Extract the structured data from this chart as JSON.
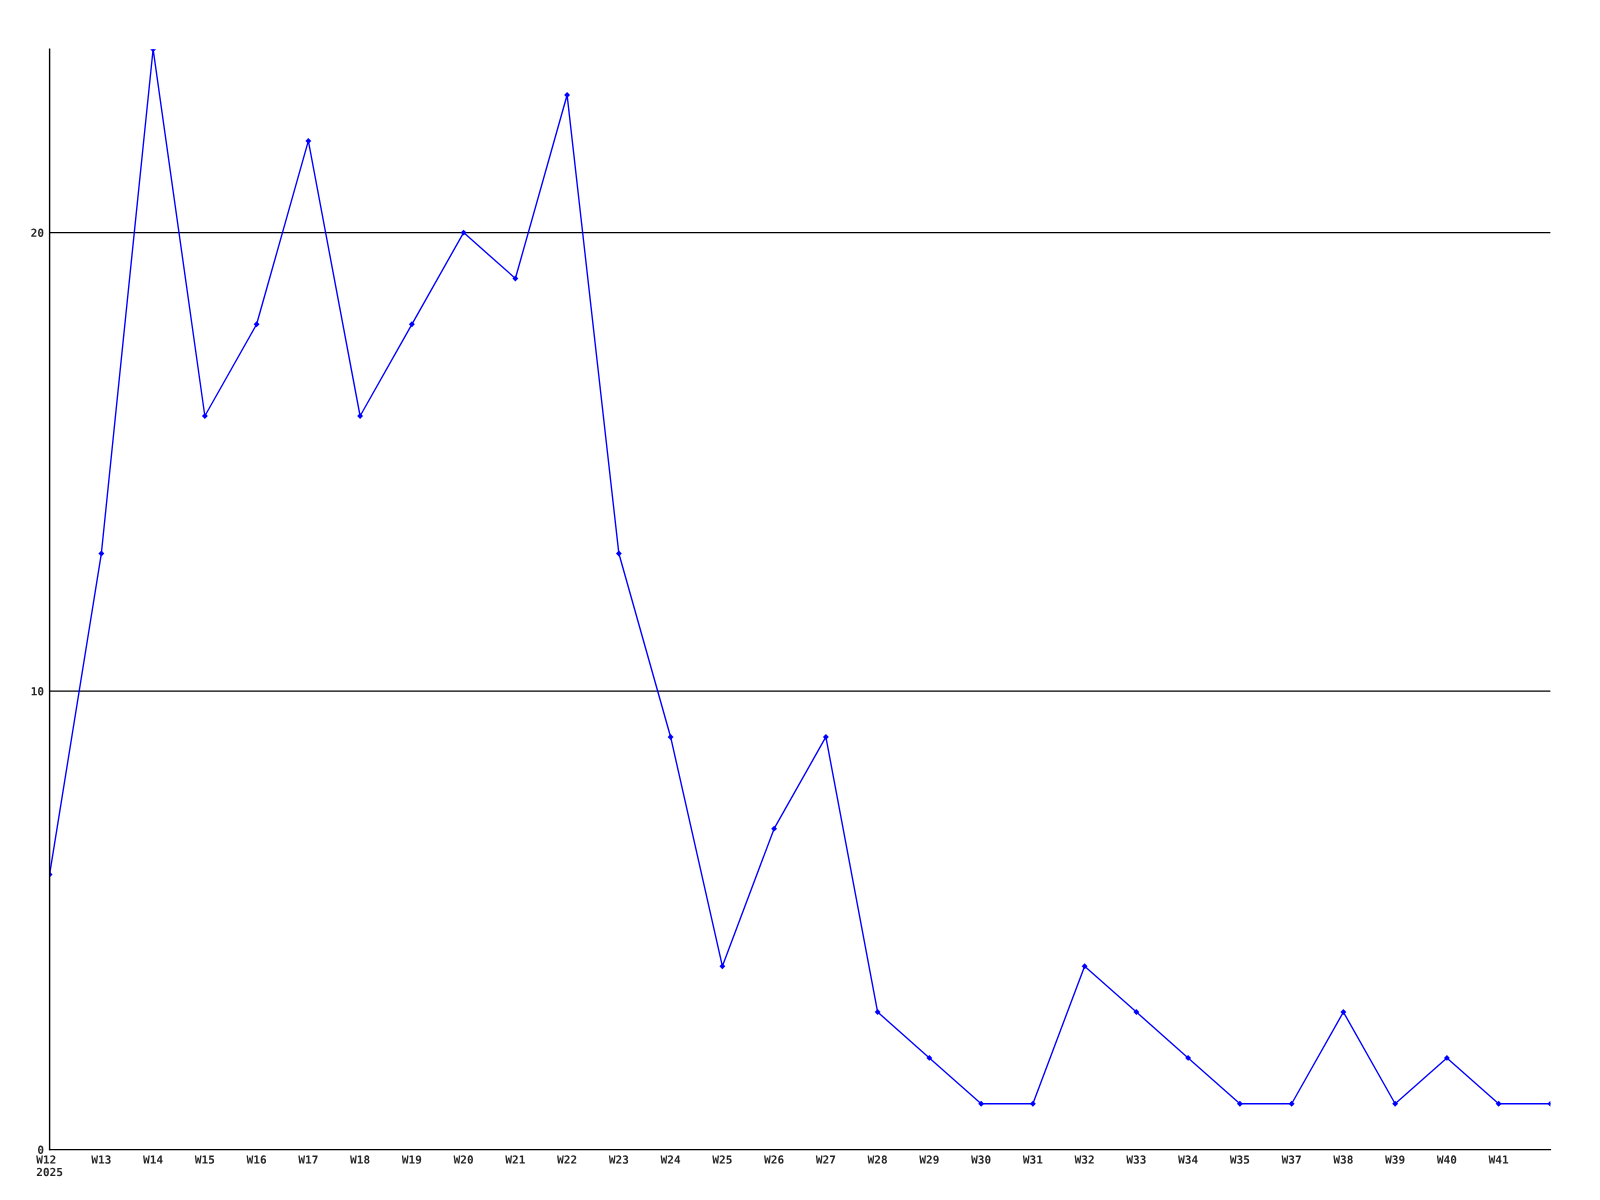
{
  "chart_data": {
    "type": "line",
    "categories": [
      "W12\n2025",
      "W13",
      "W14",
      "W15",
      "W16",
      "W17",
      "W18",
      "W19",
      "W20",
      "W21",
      "W22",
      "W23",
      "W24",
      "W25",
      "W26",
      "W27",
      "W28",
      "W29",
      "W30",
      "W31",
      "W32",
      "W33",
      "W34",
      "W35",
      "W37",
      "W38",
      "W39",
      "W40",
      "W41",
      null
    ],
    "series": [
      {
        "color": "#0000ff",
        "values": [
          6,
          13,
          24,
          16,
          18,
          22,
          16,
          18,
          20,
          19,
          23,
          13,
          9,
          4,
          7,
          9,
          3,
          2,
          1,
          1,
          4,
          3,
          2,
          1,
          1,
          3,
          1,
          2,
          1,
          1
        ]
      }
    ],
    "ylim": [
      0,
      24
    ],
    "yticks": [
      0,
      10,
      20
    ],
    "grid": "y",
    "marker": "diamond",
    "line_style": "solid"
  }
}
